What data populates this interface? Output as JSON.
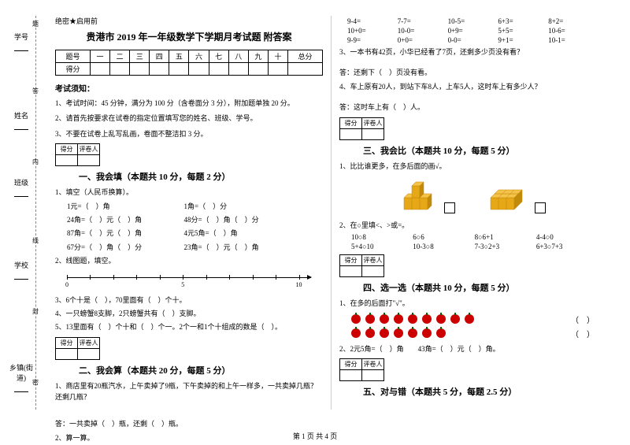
{
  "binding": {
    "labels": [
      "学号",
      "姓名",
      "班级",
      "学校",
      "乡镇(街道)"
    ],
    "marks": [
      "题",
      "答",
      "内",
      "线",
      "封",
      "密"
    ]
  },
  "secret": "绝密★启用前",
  "title": "贵港市 2019 年一年级数学下学期月考试题 附答案",
  "score_headers": [
    "题号",
    "一",
    "二",
    "三",
    "四",
    "五",
    "六",
    "七",
    "八",
    "九",
    "十",
    "总分"
  ],
  "score_row2": "得分",
  "notice_title": "考试须知：",
  "notices": [
    "1、考试时间：45 分钟，满分为 100 分（含卷面分 3 分），附加题单独 20 分。",
    "2、请首先按要求在试卷的指定位置填写您的姓名、班级、学号。",
    "3、不要在试卷上乱写乱画，卷面不整洁扣 3 分。"
  ],
  "small_score": {
    "c1": "得分",
    "c2": "评卷人"
  },
  "section1": {
    "title": "一、我会填（本题共 10 分，每题 2 分）",
    "q1": "1、填空（人民币换算）。",
    "q1_items": [
      "1元=（　）角",
      "1角=（　）分",
      "24角=（　）元（　）角",
      "48分=（　）角（　）分",
      "87角=（　）元（　）角",
      "4元5角=（　）角",
      "67分=（　）角（　）分",
      "23角=（　）元（　）角"
    ],
    "q2": "2、线图题，填空。",
    "numline": {
      "labels": [
        "0",
        "5",
        "10"
      ],
      "tick_count": 11
    },
    "q3": "3、6个十是（　），70里面有（　）个十。",
    "q4": "4、一只螃蟹8支脚，2只螃蟹共有（　）支脚。",
    "q5": "5、13里面有（　）个十和（　）个一。2个一和1个十组成的数是（　）。"
  },
  "section2": {
    "title": "二、我会算（本题共 20 分，每题 5 分）",
    "q1": "1、商店里有20瓶汽水，上午卖掉了9瓶，下午卖掉的和上午一样多，一共卖掉几瓶？还剩几瓶？",
    "ans1": "答：一共卖掉（　）瓶，还剩（　）瓶。",
    "q2": "2、算一算。"
  },
  "section2r": {
    "arith_rows": [
      [
        "9-4=",
        "7-7=",
        "10-5=",
        "6+3=",
        "8+2="
      ],
      [
        "10+0=",
        "10-0=",
        "0+9=",
        "5+5=",
        "10-6="
      ],
      [
        "9-9=",
        "0+0=",
        "0-0=",
        "9+1=",
        "10-1="
      ]
    ],
    "q3": "3、一本书有42页，小华已经看了7页，还剩多少页没有看？",
    "ans3": "答：还剩下（　）页没有看。",
    "q4": "4、车上原有20人，到站下车8人，上车5人，这时车上有多少人？",
    "ans4": "答：这时车上有（　）人。"
  },
  "section3": {
    "title": "三、我会比（本题共 10 分，每题 5 分）",
    "q1": "1、比比谁更多，在多后面的画√。",
    "cube_colors": {
      "gold": "#e6a817",
      "gold_dark": "#c28a0a",
      "gold_light": "#f5c24a",
      "blue": "#8fb5d8",
      "blue_dark": "#6a93b8",
      "blue_light": "#b3d0e8"
    },
    "q2": "2、在○里填<、>或=。",
    "cmp_rows": [
      [
        "10○8",
        "6○6",
        "8○6+1",
        "4-4○0"
      ],
      [
        "5+4○10",
        "10-3○8",
        "7-3○2+3",
        "6+3○7+3"
      ]
    ]
  },
  "section4": {
    "title": "四、选一选（本题共 10 分，每题 5 分）",
    "q1": "1、在多的后面打\"√\"。",
    "apple_counts": [
      9,
      7
    ],
    "q2": "2、2元5角=（　）角　　43角=（　）元（　）角。"
  },
  "section5": {
    "title": "五、对与错（本题共 5 分，每题 2.5 分）"
  },
  "footer": "第 1 页 共 4 页"
}
